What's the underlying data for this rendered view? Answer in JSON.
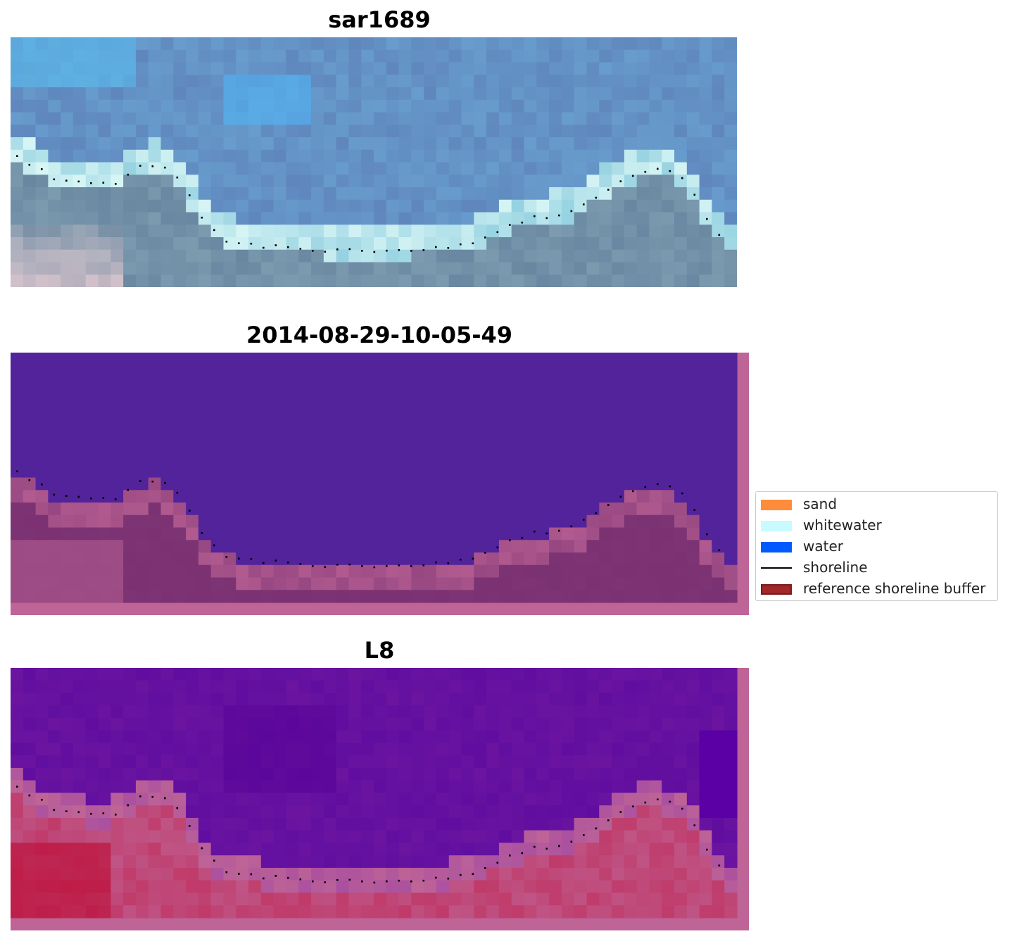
{
  "panels": [
    {
      "title": "sar1689",
      "style": "rgb"
    },
    {
      "title": "2014-08-29-10-05-49",
      "style": "classified"
    },
    {
      "title": "L8",
      "style": "index"
    }
  ],
  "legend": {
    "items": [
      {
        "label": "sand",
        "kind": "patch",
        "color": "#ff8c3a"
      },
      {
        "label": "whitewater",
        "kind": "patch",
        "color": "#c8fbff"
      },
      {
        "label": "water",
        "kind": "patch",
        "color": "#005aff"
      },
      {
        "label": "shoreline",
        "kind": "line",
        "color": "#000000"
      },
      {
        "label": "reference shoreline buffer",
        "kind": "patch",
        "color": "#a02828",
        "edge": "#7a1a1a"
      }
    ]
  },
  "colors": {
    "water_class": "#53239b",
    "buffer_pink": "#be6496",
    "land_mauve": "#7d3474",
    "index_purple": "#6a14a0",
    "index_red": "#c0305e"
  }
}
